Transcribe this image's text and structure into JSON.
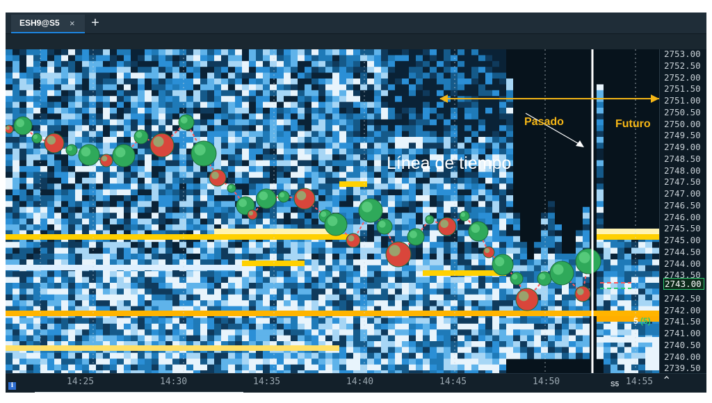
{
  "tabs": [
    {
      "label": "ESH9@S5",
      "close_glyph": "×",
      "active": true
    }
  ],
  "add_tab_glyph": "+",
  "annotations": {
    "pasado": "Pasado",
    "futuro": "Futuro",
    "linea": "Línea de  tiempo"
  },
  "price_axis": {
    "labels": [
      "2753.00",
      "2752.50",
      "2752.00",
      "2751.50",
      "2751.00",
      "2750.50",
      "2750.00",
      "2749.50",
      "2749.00",
      "2748.50",
      "2748.00",
      "2747.50",
      "2747.00",
      "2746.50",
      "2746.00",
      "2745.50",
      "2745.00",
      "2744.50",
      "2744.00",
      "2743.50",
      "2743.00",
      "2742.50",
      "2742.00",
      "2741.50",
      "2741.00",
      "2740.50",
      "2740.00",
      "2739.50"
    ],
    "current_price": "2743.00"
  },
  "time_axis": {
    "labels": [
      "14:25",
      "14:30",
      "14:35",
      "14:40",
      "14:45",
      "14:50",
      "14:55"
    ],
    "timeframe": "S5"
  },
  "order_marker": {
    "size": "5",
    "count": "(5)"
  },
  "colors": {
    "accent": "#1e88e5",
    "timeline": "#ffffff",
    "annotation": "#f5b616",
    "bid": "#2ecc71",
    "ask": "#e74c3c",
    "liquidity_high": "#ffd000",
    "liquidity_mid": "#2b8fd6"
  },
  "icons": [
    "close-icon",
    "plus-icon",
    "chevron-up-icon",
    "info-icon"
  ]
}
